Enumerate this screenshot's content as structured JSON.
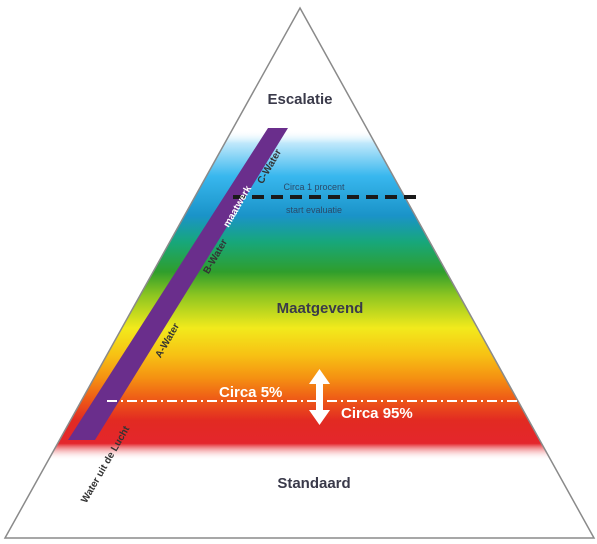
{
  "levels": {
    "top": "Escalatie",
    "middle": "Maatgevend",
    "bottom": "Standaard"
  },
  "water_labels": {
    "c": "C-Water",
    "b": "B-Water",
    "a": "A-Water",
    "outside": "Water uit de Lucht"
  },
  "side_band_label": "maatwerk",
  "threshold_note": {
    "line1": "Circa 1 procent",
    "line2": "start evaluatie"
  },
  "percentages": {
    "upper": "Circa 5%",
    "lower": "Circa 95%"
  },
  "colors": {
    "outline": "#8a8a8a",
    "side_band": "#6a2e8c",
    "arrow": "#ffffff",
    "dash_line": "#1a1a1a"
  }
}
